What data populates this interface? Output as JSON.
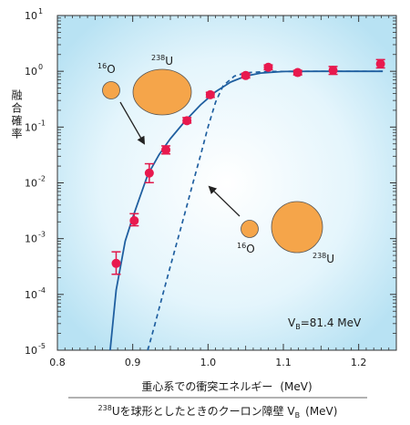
{
  "chart_data": {
    "type": "scatter",
    "y_scale": "log",
    "xlim": [
      0.8,
      1.25
    ],
    "ylim_exp": [
      -5,
      1
    ],
    "x_ticks": [
      "0.8",
      "0.9",
      "1.0",
      "1.1",
      "1.2"
    ],
    "x_tick_values": [
      0.8,
      0.9,
      1.0,
      1.1,
      1.2
    ],
    "y_ticks": [
      {
        "exp": 1,
        "base": "10",
        "sup": "1"
      },
      {
        "exp": 0,
        "base": "10",
        "sup": "0"
      },
      {
        "exp": -1,
        "base": "10",
        "sup": "-1"
      },
      {
        "exp": -2,
        "base": "10",
        "sup": "-2"
      },
      {
        "exp": -3,
        "base": "10",
        "sup": "-3"
      },
      {
        "exp": -4,
        "base": "10",
        "sup": "-4"
      },
      {
        "exp": -5,
        "base": "10",
        "sup": "-5"
      }
    ],
    "ylabel": "融合確率",
    "xlabel_line1": {
      "main": "重心系での衝突エネルギー",
      "unit": "(MeV)"
    },
    "xlabel_line2": {
      "sup": "238",
      "a": "Uを球形としたときのクーロン障壁 V",
      "sub": "B",
      "b": "(MeV)"
    },
    "annotation_vb": {
      "a": "V",
      "sub": "B",
      "b": "=81.4 MeV"
    },
    "nucleus_labels": {
      "small_top": {
        "sup": "16",
        "text": "O"
      },
      "large_top": {
        "sup": "238",
        "text": "U"
      },
      "small_bottom": {
        "sup": "16",
        "text": "O"
      },
      "large_bottom": {
        "sup": "238",
        "text": "U"
      }
    },
    "points": [
      {
        "x": 0.878,
        "y": 0.00036,
        "err_lo": 0.00023,
        "err_hi": 0.00058
      },
      {
        "x": 0.902,
        "y": 0.0021,
        "err_lo": 0.0017,
        "err_hi": 0.0028
      },
      {
        "x": 0.922,
        "y": 0.015,
        "err_lo": 0.0101,
        "err_hi": 0.022
      },
      {
        "x": 0.944,
        "y": 0.039,
        "err_lo": 0.033,
        "err_hi": 0.046
      },
      {
        "x": 0.972,
        "y": 0.13,
        "err_lo": 0.118,
        "err_hi": 0.148
      },
      {
        "x": 1.003,
        "y": 0.38,
        "err_lo": 0.34,
        "err_hi": 0.42
      },
      {
        "x": 1.05,
        "y": 0.84,
        "err_lo": 0.76,
        "err_hi": 0.92
      },
      {
        "x": 1.08,
        "y": 1.18,
        "err_lo": 1.07,
        "err_hi": 1.3
      },
      {
        "x": 1.119,
        "y": 0.95,
        "err_lo": 0.86,
        "err_hi": 1.04
      },
      {
        "x": 1.166,
        "y": 1.04,
        "err_lo": 0.88,
        "err_hi": 1.22
      },
      {
        "x": 1.229,
        "y": 1.36,
        "err_lo": 1.15,
        "err_hi": 1.62
      }
    ],
    "solid_curve": [
      [
        0.87,
        1e-05
      ],
      [
        0.878,
        0.00012
      ],
      [
        0.89,
        0.0009
      ],
      [
        0.9,
        0.0024
      ],
      [
        0.91,
        0.0058
      ],
      [
        0.92,
        0.014
      ],
      [
        0.935,
        0.032
      ],
      [
        0.95,
        0.062
      ],
      [
        0.97,
        0.13
      ],
      [
        0.99,
        0.25
      ],
      [
        1.01,
        0.43
      ],
      [
        1.03,
        0.64
      ],
      [
        1.05,
        0.82
      ],
      [
        1.07,
        0.93
      ],
      [
        1.1,
        0.99
      ],
      [
        1.15,
        1.0
      ],
      [
        1.2,
        1.0
      ],
      [
        1.232,
        1.0
      ]
    ],
    "dashed_curve": [
      [
        0.92,
        1e-05
      ],
      [
        0.93,
        3.1e-05
      ],
      [
        0.94,
        0.0001
      ],
      [
        0.95,
        0.00032
      ],
      [
        0.96,
        0.001
      ],
      [
        0.97,
        0.0031
      ],
      [
        0.98,
        0.01
      ],
      [
        0.99,
        0.031
      ],
      [
        1.0,
        0.1
      ],
      [
        1.01,
        0.28
      ],
      [
        1.02,
        0.55
      ],
      [
        1.035,
        0.82
      ],
      [
        1.05,
        0.94
      ],
      [
        1.08,
        0.99
      ],
      [
        1.12,
        1.0
      ],
      [
        1.232,
        1.0
      ]
    ]
  }
}
